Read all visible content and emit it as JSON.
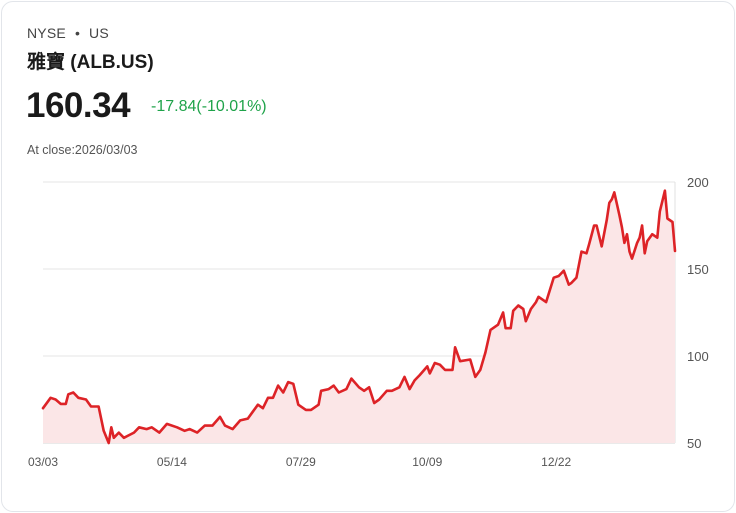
{
  "header": {
    "exchange": "NYSE",
    "dot": "•",
    "region": "US",
    "name": "雅寶 (ALB.US)",
    "price": "160.34",
    "change": "-17.84(-10.01%)",
    "close_label": "At close:2026/03/03"
  },
  "colors": {
    "line": "#dd2327",
    "fill": "#fbe6e7",
    "positive": "#1fa34a",
    "grid": "#e5e5e5"
  },
  "chart_data": {
    "type": "area",
    "title": "",
    "xlabel": "",
    "ylabel": "",
    "ylim": [
      50,
      200
    ],
    "xlim": [
      0,
      250
    ],
    "grid": true,
    "yticks": [
      200,
      150,
      100,
      50
    ],
    "xticks": [
      {
        "day": 0,
        "label": "03/03"
      },
      {
        "day": 51,
        "label": "05/14"
      },
      {
        "day": 102,
        "label": "07/29"
      },
      {
        "day": 152,
        "label": "10/09"
      },
      {
        "day": 203,
        "label": "12/22"
      }
    ],
    "points": [
      [
        0,
        70
      ],
      [
        3,
        76
      ],
      [
        5,
        75
      ],
      [
        7,
        72.5
      ],
      [
        9,
        72.5
      ],
      [
        10,
        78
      ],
      [
        12,
        79
      ],
      [
        14,
        76
      ],
      [
        17,
        75
      ],
      [
        19,
        71
      ],
      [
        22,
        71
      ],
      [
        24,
        57
      ],
      [
        26,
        50
      ],
      [
        27,
        59
      ],
      [
        28,
        53
      ],
      [
        30,
        56
      ],
      [
        32,
        53
      ],
      [
        36,
        56
      ],
      [
        38,
        59
      ],
      [
        41,
        58
      ],
      [
        43,
        59
      ],
      [
        46,
        56
      ],
      [
        49,
        61
      ],
      [
        53,
        59
      ],
      [
        56,
        57
      ],
      [
        58,
        58
      ],
      [
        61,
        56
      ],
      [
        64,
        60
      ],
      [
        67,
        60
      ],
      [
        70,
        65
      ],
      [
        72,
        60
      ],
      [
        75,
        58
      ],
      [
        78,
        63
      ],
      [
        81,
        64
      ],
      [
        83,
        68
      ],
      [
        85,
        72
      ],
      [
        87,
        70
      ],
      [
        89,
        76
      ],
      [
        91,
        76
      ],
      [
        93,
        83
      ],
      [
        95,
        79
      ],
      [
        97,
        85
      ],
      [
        99,
        84
      ],
      [
        101,
        72
      ],
      [
        104,
        69
      ],
      [
        106,
        69
      ],
      [
        109,
        72
      ],
      [
        110,
        80
      ],
      [
        113,
        81
      ],
      [
        115,
        83
      ],
      [
        117,
        79
      ],
      [
        120,
        81
      ],
      [
        122,
        87
      ],
      [
        125,
        82
      ],
      [
        127,
        80
      ],
      [
        129,
        82
      ],
      [
        131,
        73
      ],
      [
        133,
        75
      ],
      [
        136,
        80
      ],
      [
        138,
        80
      ],
      [
        141,
        82
      ],
      [
        143,
        88
      ],
      [
        145,
        81
      ],
      [
        147,
        86
      ],
      [
        149,
        89
      ],
      [
        152,
        94
      ],
      [
        153,
        90
      ],
      [
        155,
        96
      ],
      [
        157,
        95
      ],
      [
        159,
        92
      ],
      [
        162,
        92
      ],
      [
        163,
        105
      ],
      [
        165,
        97
      ],
      [
        169,
        98
      ],
      [
        171,
        88
      ],
      [
        173,
        92
      ],
      [
        175,
        102
      ],
      [
        177,
        115
      ],
      [
        180,
        118
      ],
      [
        182,
        125
      ],
      [
        183,
        116
      ],
      [
        185,
        116
      ],
      [
        186,
        126
      ],
      [
        188,
        129
      ],
      [
        190,
        127
      ],
      [
        191,
        120
      ],
      [
        193,
        127
      ],
      [
        195,
        131
      ],
      [
        196,
        134
      ],
      [
        199,
        131
      ],
      [
        202,
        145
      ],
      [
        204,
        146
      ],
      [
        206,
        149
      ],
      [
        208,
        141
      ],
      [
        209,
        142
      ],
      [
        211,
        145
      ],
      [
        213,
        160
      ],
      [
        215,
        159
      ],
      [
        216,
        164
      ],
      [
        218,
        175
      ],
      [
        219,
        175
      ],
      [
        221,
        163
      ],
      [
        223,
        178
      ],
      [
        224,
        188
      ],
      [
        225,
        190
      ],
      [
        226,
        194
      ],
      [
        228,
        181
      ],
      [
        229,
        174
      ],
      [
        230,
        165
      ],
      [
        231,
        170
      ],
      [
        232,
        160
      ],
      [
        233,
        156
      ],
      [
        235,
        165
      ],
      [
        236,
        168
      ],
      [
        237,
        175
      ],
      [
        238,
        159
      ],
      [
        239,
        166
      ],
      [
        241,
        170
      ],
      [
        243,
        168
      ],
      [
        244,
        183
      ],
      [
        246,
        195
      ],
      [
        247,
        179
      ],
      [
        249,
        177
      ],
      [
        250,
        160.34
      ]
    ]
  }
}
